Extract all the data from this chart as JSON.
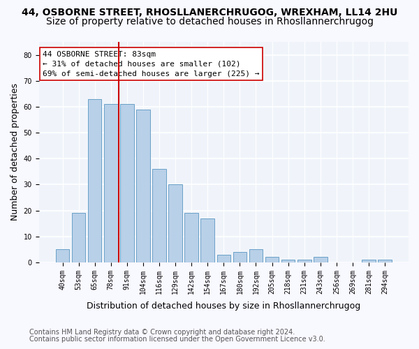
{
  "title1": "44, OSBORNE STREET, RHOSLLANERCHRUGOG, WREXHAM, LL14 2HU",
  "title2": "Size of property relative to detached houses in Rhosllannerchrugog",
  "xlabel": "Distribution of detached houses by size in Rhosllannerchrugog",
  "ylabel": "Number of detached properties",
  "categories": [
    "40sqm",
    "53sqm",
    "65sqm",
    "78sqm",
    "91sqm",
    "104sqm",
    "116sqm",
    "129sqm",
    "142sqm",
    "154sqm",
    "167sqm",
    "180sqm",
    "192sqm",
    "205sqm",
    "218sqm",
    "231sqm",
    "243sqm",
    "256sqm",
    "269sqm",
    "281sqm",
    "294sqm"
  ],
  "values": [
    5,
    19,
    63,
    61,
    61,
    59,
    36,
    30,
    19,
    17,
    3,
    4,
    5,
    2,
    1,
    1,
    2,
    0,
    0,
    1,
    1
  ],
  "bar_color": "#b8d0e8",
  "bar_edge_color": "#6aa0c8",
  "vline_x": 3.5,
  "vline_color": "#cc0000",
  "annotation_text": "44 OSBORNE STREET: 83sqm\n← 31% of detached houses are smaller (102)\n69% of semi-detached houses are larger (225) →",
  "annotation_box_color": "white",
  "annotation_box_edge": "#cc0000",
  "ylim": [
    0,
    85
  ],
  "yticks": [
    0,
    10,
    20,
    30,
    40,
    50,
    60,
    70,
    80
  ],
  "footer1": "Contains HM Land Registry data © Crown copyright and database right 2024.",
  "footer2": "Contains public sector information licensed under the Open Government Licence v3.0.",
  "background_color": "#f0f4fa",
  "grid_color": "#ffffff",
  "title1_fontsize": 10,
  "title2_fontsize": 10,
  "xlabel_fontsize": 9,
  "ylabel_fontsize": 9,
  "tick_fontsize": 7,
  "annotation_fontsize": 8,
  "footer_fontsize": 7
}
